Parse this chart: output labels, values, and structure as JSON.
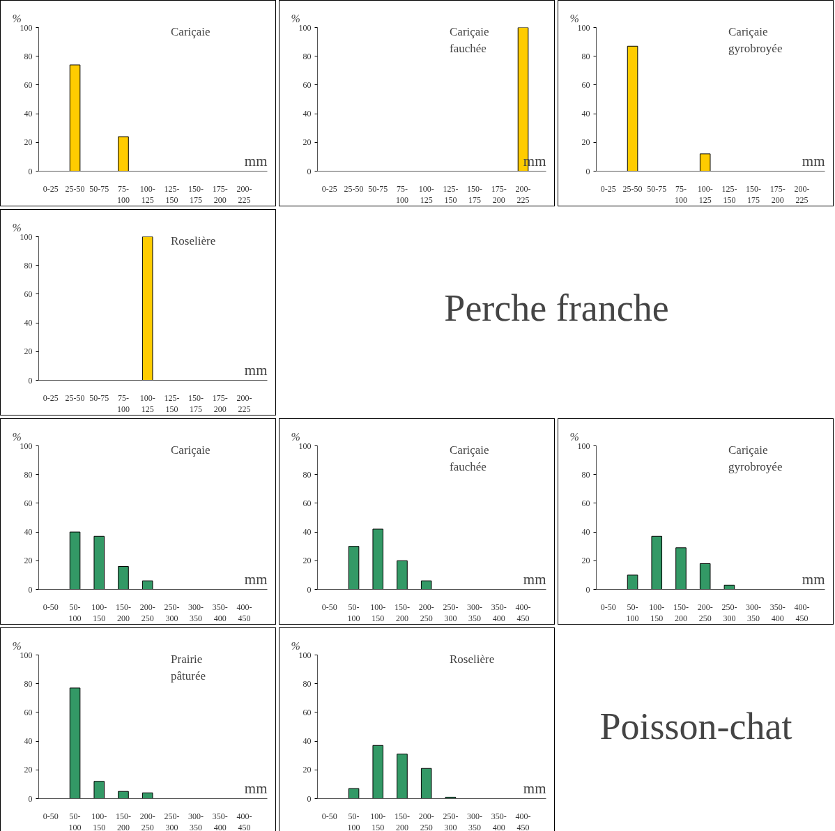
{
  "chart_data": [
    {
      "type": "bar",
      "title": "Cariçaie",
      "xlabel": "mm",
      "ylabel": "%",
      "color": "#ffcc00",
      "ylim": [
        0,
        100
      ],
      "yticks": [
        0,
        20,
        40,
        60,
        80,
        100
      ],
      "grid": false,
      "categories": [
        "0-25",
        "25-50",
        "50-75",
        "75-\n100",
        "100-\n125",
        "125-\n150",
        "150-\n175",
        "175-\n200",
        "200-\n225"
      ],
      "values": [
        0,
        74,
        0,
        24,
        0,
        0,
        0,
        0,
        0
      ]
    },
    {
      "type": "bar",
      "title": "Cariçaie\nfauchée",
      "xlabel": "mm",
      "ylabel": "%",
      "color": "#ffcc00",
      "ylim": [
        0,
        100
      ],
      "yticks": [
        0,
        20,
        40,
        60,
        80,
        100
      ],
      "grid": false,
      "categories": [
        "0-25",
        "25-50",
        "50-75",
        "75-\n100",
        "100-\n125",
        "125-\n150",
        "150-\n175",
        "175-\n200",
        "200-\n225"
      ],
      "values": [
        0,
        0,
        0,
        0,
        0,
        0,
        0,
        0,
        100
      ]
    },
    {
      "type": "bar",
      "title": "Cariçaie\ngyrobroyée",
      "xlabel": "mm",
      "ylabel": "%",
      "color": "#ffcc00",
      "ylim": [
        0,
        100
      ],
      "yticks": [
        0,
        20,
        40,
        60,
        80,
        100
      ],
      "grid": false,
      "categories": [
        "0-25",
        "25-50",
        "50-75",
        "75-\n100",
        "100-\n125",
        "125-\n150",
        "150-\n175",
        "175-\n200",
        "200-\n225"
      ],
      "values": [
        0,
        87,
        0,
        0,
        12,
        0,
        0,
        0,
        0
      ]
    },
    {
      "type": "bar",
      "title": "Roselière",
      "xlabel": "mm",
      "ylabel": "%",
      "color": "#ffcc00",
      "ylim": [
        0,
        100
      ],
      "yticks": [
        0,
        20,
        40,
        60,
        80,
        100
      ],
      "grid": false,
      "categories": [
        "0-25",
        "25-50",
        "50-75",
        "75-\n100",
        "100-\n125",
        "125-\n150",
        "150-\n175",
        "175-\n200",
        "200-\n225"
      ],
      "values": [
        0,
        0,
        0,
        0,
        100,
        0,
        0,
        0,
        0
      ]
    },
    {
      "type": "other",
      "title": "Perche franche"
    },
    {
      "type": "bar",
      "title": "Cariçaie",
      "xlabel": "mm",
      "ylabel": "%",
      "color": "#339966",
      "ylim": [
        0,
        100
      ],
      "yticks": [
        0,
        20,
        40,
        60,
        80,
        100
      ],
      "grid": false,
      "categories": [
        "0-50",
        "50-\n100",
        "100-\n150",
        "150-\n200",
        "200-\n250",
        "250-\n300",
        "300-\n350",
        "350-\n400",
        "400-\n450"
      ],
      "values": [
        0,
        40,
        37,
        16,
        6,
        0,
        0,
        0,
        0
      ]
    },
    {
      "type": "bar",
      "title": "Cariçaie\nfauchée",
      "xlabel": "mm",
      "ylabel": "%",
      "color": "#339966",
      "ylim": [
        0,
        100
      ],
      "yticks": [
        0,
        20,
        40,
        60,
        80,
        100
      ],
      "grid": false,
      "categories": [
        "0-50",
        "50-\n100",
        "100-\n150",
        "150-\n200",
        "200-\n250",
        "250-\n300",
        "300-\n350",
        "350-\n400",
        "400-\n450"
      ],
      "values": [
        0,
        30,
        42,
        20,
        6,
        0,
        0,
        0,
        0
      ]
    },
    {
      "type": "bar",
      "title": "Cariçaie\ngyrobroyée",
      "xlabel": "mm",
      "ylabel": "%",
      "color": "#339966",
      "ylim": [
        0,
        100
      ],
      "yticks": [
        0,
        20,
        40,
        60,
        80,
        100
      ],
      "grid": false,
      "categories": [
        "0-50",
        "50-\n100",
        "100-\n150",
        "150-\n200",
        "200-\n250",
        "250-\n300",
        "300-\n350",
        "350-\n400",
        "400-\n450"
      ],
      "values": [
        0,
        10,
        37,
        29,
        18,
        3,
        0,
        0,
        0
      ]
    },
    {
      "type": "bar",
      "title": "Prairie\npâturée",
      "xlabel": "mm",
      "ylabel": "%",
      "color": "#339966",
      "ylim": [
        0,
        100
      ],
      "yticks": [
        0,
        20,
        40,
        60,
        80,
        100
      ],
      "grid": false,
      "categories": [
        "0-50",
        "50-\n100",
        "100-\n150",
        "150-\n200",
        "200-\n250",
        "250-\n300",
        "300-\n350",
        "350-\n400",
        "400-\n450"
      ],
      "values": [
        0,
        77,
        12,
        5,
        4,
        0,
        0,
        0,
        0
      ]
    },
    {
      "type": "bar",
      "title": "Roselière",
      "xlabel": "mm",
      "ylabel": "%",
      "color": "#339966",
      "ylim": [
        0,
        100
      ],
      "yticks": [
        0,
        20,
        40,
        60,
        80,
        100
      ],
      "grid": false,
      "categories": [
        "0-50",
        "50-\n100",
        "100-\n150",
        "150-\n200",
        "200-\n250",
        "250-\n300",
        "300-\n350",
        "350-\n400",
        "400-\n450"
      ],
      "values": [
        0,
        7,
        37,
        31,
        21,
        1,
        0,
        0,
        0
      ]
    },
    {
      "type": "other",
      "title": "Poisson-chat"
    }
  ]
}
